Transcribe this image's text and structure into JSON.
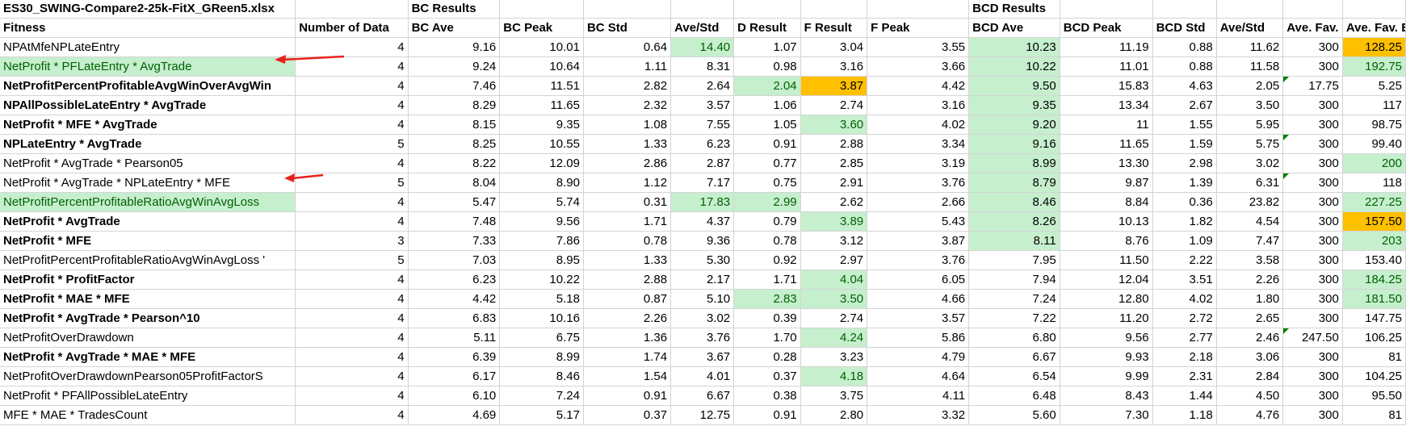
{
  "file_title": "ES30_SWING-Compare2-25k-FitX_GReen5.xlsx",
  "group_headers": {
    "bc": "BC Results",
    "bcd": "BCD Results"
  },
  "columns": [
    "Fitness",
    "Number of Data",
    "BC Ave",
    "BC Peak",
    "BC Std",
    "Ave/Std",
    "D Result",
    "F Result",
    "F Peak",
    "BCD Ave",
    "BCD Peak",
    "BCD Std",
    "Ave/Std",
    "Ave. Fav. /",
    "Ave. Fav. B"
  ],
  "rows": [
    {
      "name": "NPAtMfeNPLateEntry",
      "bold": false,
      "hl": false,
      "v": [
        "4",
        "9.16",
        "10.01",
        "0.64",
        "14.40",
        "1.07",
        "3.04",
        "3.55",
        "10.23",
        "11.19",
        "0.88",
        "11.62",
        "300",
        "128.25"
      ]
    },
    {
      "name": "NetProfit * PFLateEntry * AvgTrade",
      "bold": false,
      "hl": true,
      "v": [
        "4",
        "9.24",
        "10.64",
        "1.11",
        "8.31",
        "0.98",
        "3.16",
        "3.66",
        "10.22",
        "11.01",
        "0.88",
        "11.58",
        "300",
        "192.75"
      ]
    },
    {
      "name": "NetProfitPercentProfitableAvgWinOverAvgWin",
      "bold": true,
      "hl": false,
      "v": [
        "4",
        "7.46",
        "11.51",
        "2.82",
        "2.64",
        "2.04",
        "3.87",
        "4.42",
        "9.50",
        "15.83",
        "4.63",
        "2.05",
        "17.75",
        "5.25"
      ]
    },
    {
      "name": "NPAllPossibleLateEntry * AvgTrade",
      "bold": true,
      "hl": false,
      "v": [
        "4",
        "8.29",
        "11.65",
        "2.32",
        "3.57",
        "1.06",
        "2.74",
        "3.16",
        "9.35",
        "13.34",
        "2.67",
        "3.50",
        "300",
        "117"
      ]
    },
    {
      "name": "NetProfit * MFE * AvgTrade",
      "bold": true,
      "hl": false,
      "v": [
        "4",
        "8.15",
        "9.35",
        "1.08",
        "7.55",
        "1.05",
        "3.60",
        "4.02",
        "9.20",
        "11",
        "1.55",
        "5.95",
        "300",
        "98.75"
      ]
    },
    {
      "name": "NPLateEntry * AvgTrade",
      "bold": true,
      "hl": false,
      "v": [
        "5",
        "8.25",
        "10.55",
        "1.33",
        "6.23",
        "0.91",
        "2.88",
        "3.34",
        "9.16",
        "11.65",
        "1.59",
        "5.75",
        "300",
        "99.40"
      ]
    },
    {
      "name": "NetProfit * AvgTrade * Pearson05",
      "bold": false,
      "hl": false,
      "v": [
        "4",
        "8.22",
        "12.09",
        "2.86",
        "2.87",
        "0.77",
        "2.85",
        "3.19",
        "8.99",
        "13.30",
        "2.98",
        "3.02",
        "300",
        "200"
      ]
    },
    {
      "name": "NetProfit * AvgTrade * NPLateEntry * MFE",
      "bold": false,
      "hl": false,
      "v": [
        "5",
        "8.04",
        "8.90",
        "1.12",
        "7.17",
        "0.75",
        "2.91",
        "3.76",
        "8.79",
        "9.87",
        "1.39",
        "6.31",
        "300",
        "118"
      ]
    },
    {
      "name": "NetProfitPercentProfitableRatioAvgWinAvgLoss",
      "bold": false,
      "hl": true,
      "v": [
        "4",
        "5.47",
        "5.74",
        "0.31",
        "17.83",
        "2.99",
        "2.62",
        "2.66",
        "8.46",
        "8.84",
        "0.36",
        "23.82",
        "300",
        "227.25"
      ]
    },
    {
      "name": "NetProfit * AvgTrade",
      "bold": true,
      "hl": false,
      "v": [
        "4",
        "7.48",
        "9.56",
        "1.71",
        "4.37",
        "0.79",
        "3.89",
        "5.43",
        "8.26",
        "10.13",
        "1.82",
        "4.54",
        "300",
        "157.50"
      ]
    },
    {
      "name": "NetProfit * MFE",
      "bold": true,
      "hl": false,
      "v": [
        "3",
        "7.33",
        "7.86",
        "0.78",
        "9.36",
        "0.78",
        "3.12",
        "3.87",
        "8.11",
        "8.76",
        "1.09",
        "7.47",
        "300",
        "203"
      ]
    },
    {
      "name": "NetProfitPercentProfitableRatioAvgWinAvgLoss '",
      "bold": false,
      "hl": false,
      "v": [
        "5",
        "7.03",
        "8.95",
        "1.33",
        "5.30",
        "0.92",
        "2.97",
        "3.76",
        "7.95",
        "11.50",
        "2.22",
        "3.58",
        "300",
        "153.40"
      ]
    },
    {
      "name": "NetProfit * ProfitFactor",
      "bold": true,
      "hl": false,
      "v": [
        "4",
        "6.23",
        "10.22",
        "2.88",
        "2.17",
        "1.71",
        "4.04",
        "6.05",
        "7.94",
        "12.04",
        "3.51",
        "2.26",
        "300",
        "184.25"
      ]
    },
    {
      "name": "NetProfit * MAE * MFE",
      "bold": true,
      "hl": false,
      "v": [
        "4",
        "4.42",
        "5.18",
        "0.87",
        "5.10",
        "2.83",
        "3.50",
        "4.66",
        "7.24",
        "12.80",
        "4.02",
        "1.80",
        "300",
        "181.50"
      ]
    },
    {
      "name": "NetProfit * AvgTrade * Pearson^10",
      "bold": true,
      "hl": false,
      "v": [
        "4",
        "6.83",
        "10.16",
        "2.26",
        "3.02",
        "0.39",
        "2.74",
        "3.57",
        "7.22",
        "11.20",
        "2.72",
        "2.65",
        "300",
        "147.75"
      ]
    },
    {
      "name": "NetProfitOverDrawdown",
      "bold": false,
      "hl": false,
      "v": [
        "4",
        "5.11",
        "6.75",
        "1.36",
        "3.76",
        "1.70",
        "4.24",
        "5.86",
        "6.80",
        "9.56",
        "2.77",
        "2.46",
        "247.50",
        "106.25"
      ]
    },
    {
      "name": "NetProfit * AvgTrade * MAE * MFE",
      "bold": true,
      "hl": false,
      "v": [
        "4",
        "6.39",
        "8.99",
        "1.74",
        "3.67",
        "0.28",
        "3.23",
        "4.79",
        "6.67",
        "9.93",
        "2.18",
        "3.06",
        "300",
        "81"
      ]
    },
    {
      "name": "NetProfitOverDrawdownPearson05ProfitFactorS",
      "bold": false,
      "hl": false,
      "v": [
        "4",
        "6.17",
        "8.46",
        "1.54",
        "4.01",
        "0.37",
        "4.18",
        "4.64",
        "6.54",
        "9.99",
        "2.31",
        "2.84",
        "300",
        "104.25"
      ]
    },
    {
      "name": "NetProfit * PFAllPossibleLateEntry",
      "bold": false,
      "hl": false,
      "v": [
        "4",
        "6.10",
        "7.24",
        "0.91",
        "6.67",
        "0.38",
        "3.75",
        "4.11",
        "6.48",
        "8.43",
        "1.44",
        "4.50",
        "300",
        "95.50"
      ]
    },
    {
      "name": "MFE * MAE * TradesCount",
      "bold": false,
      "hl": false,
      "v": [
        "4",
        "4.69",
        "5.17",
        "0.37",
        "12.75",
        "0.91",
        "2.80",
        "3.32",
        "5.60",
        "7.30",
        "1.18",
        "4.76",
        "300",
        "81"
      ]
    }
  ],
  "colors": {
    "green_fill": "#c6efce",
    "green_text": "#006100",
    "orange_fill": "#ffc000",
    "arrow": "#e8201b",
    "comment_marker": "#008000"
  }
}
